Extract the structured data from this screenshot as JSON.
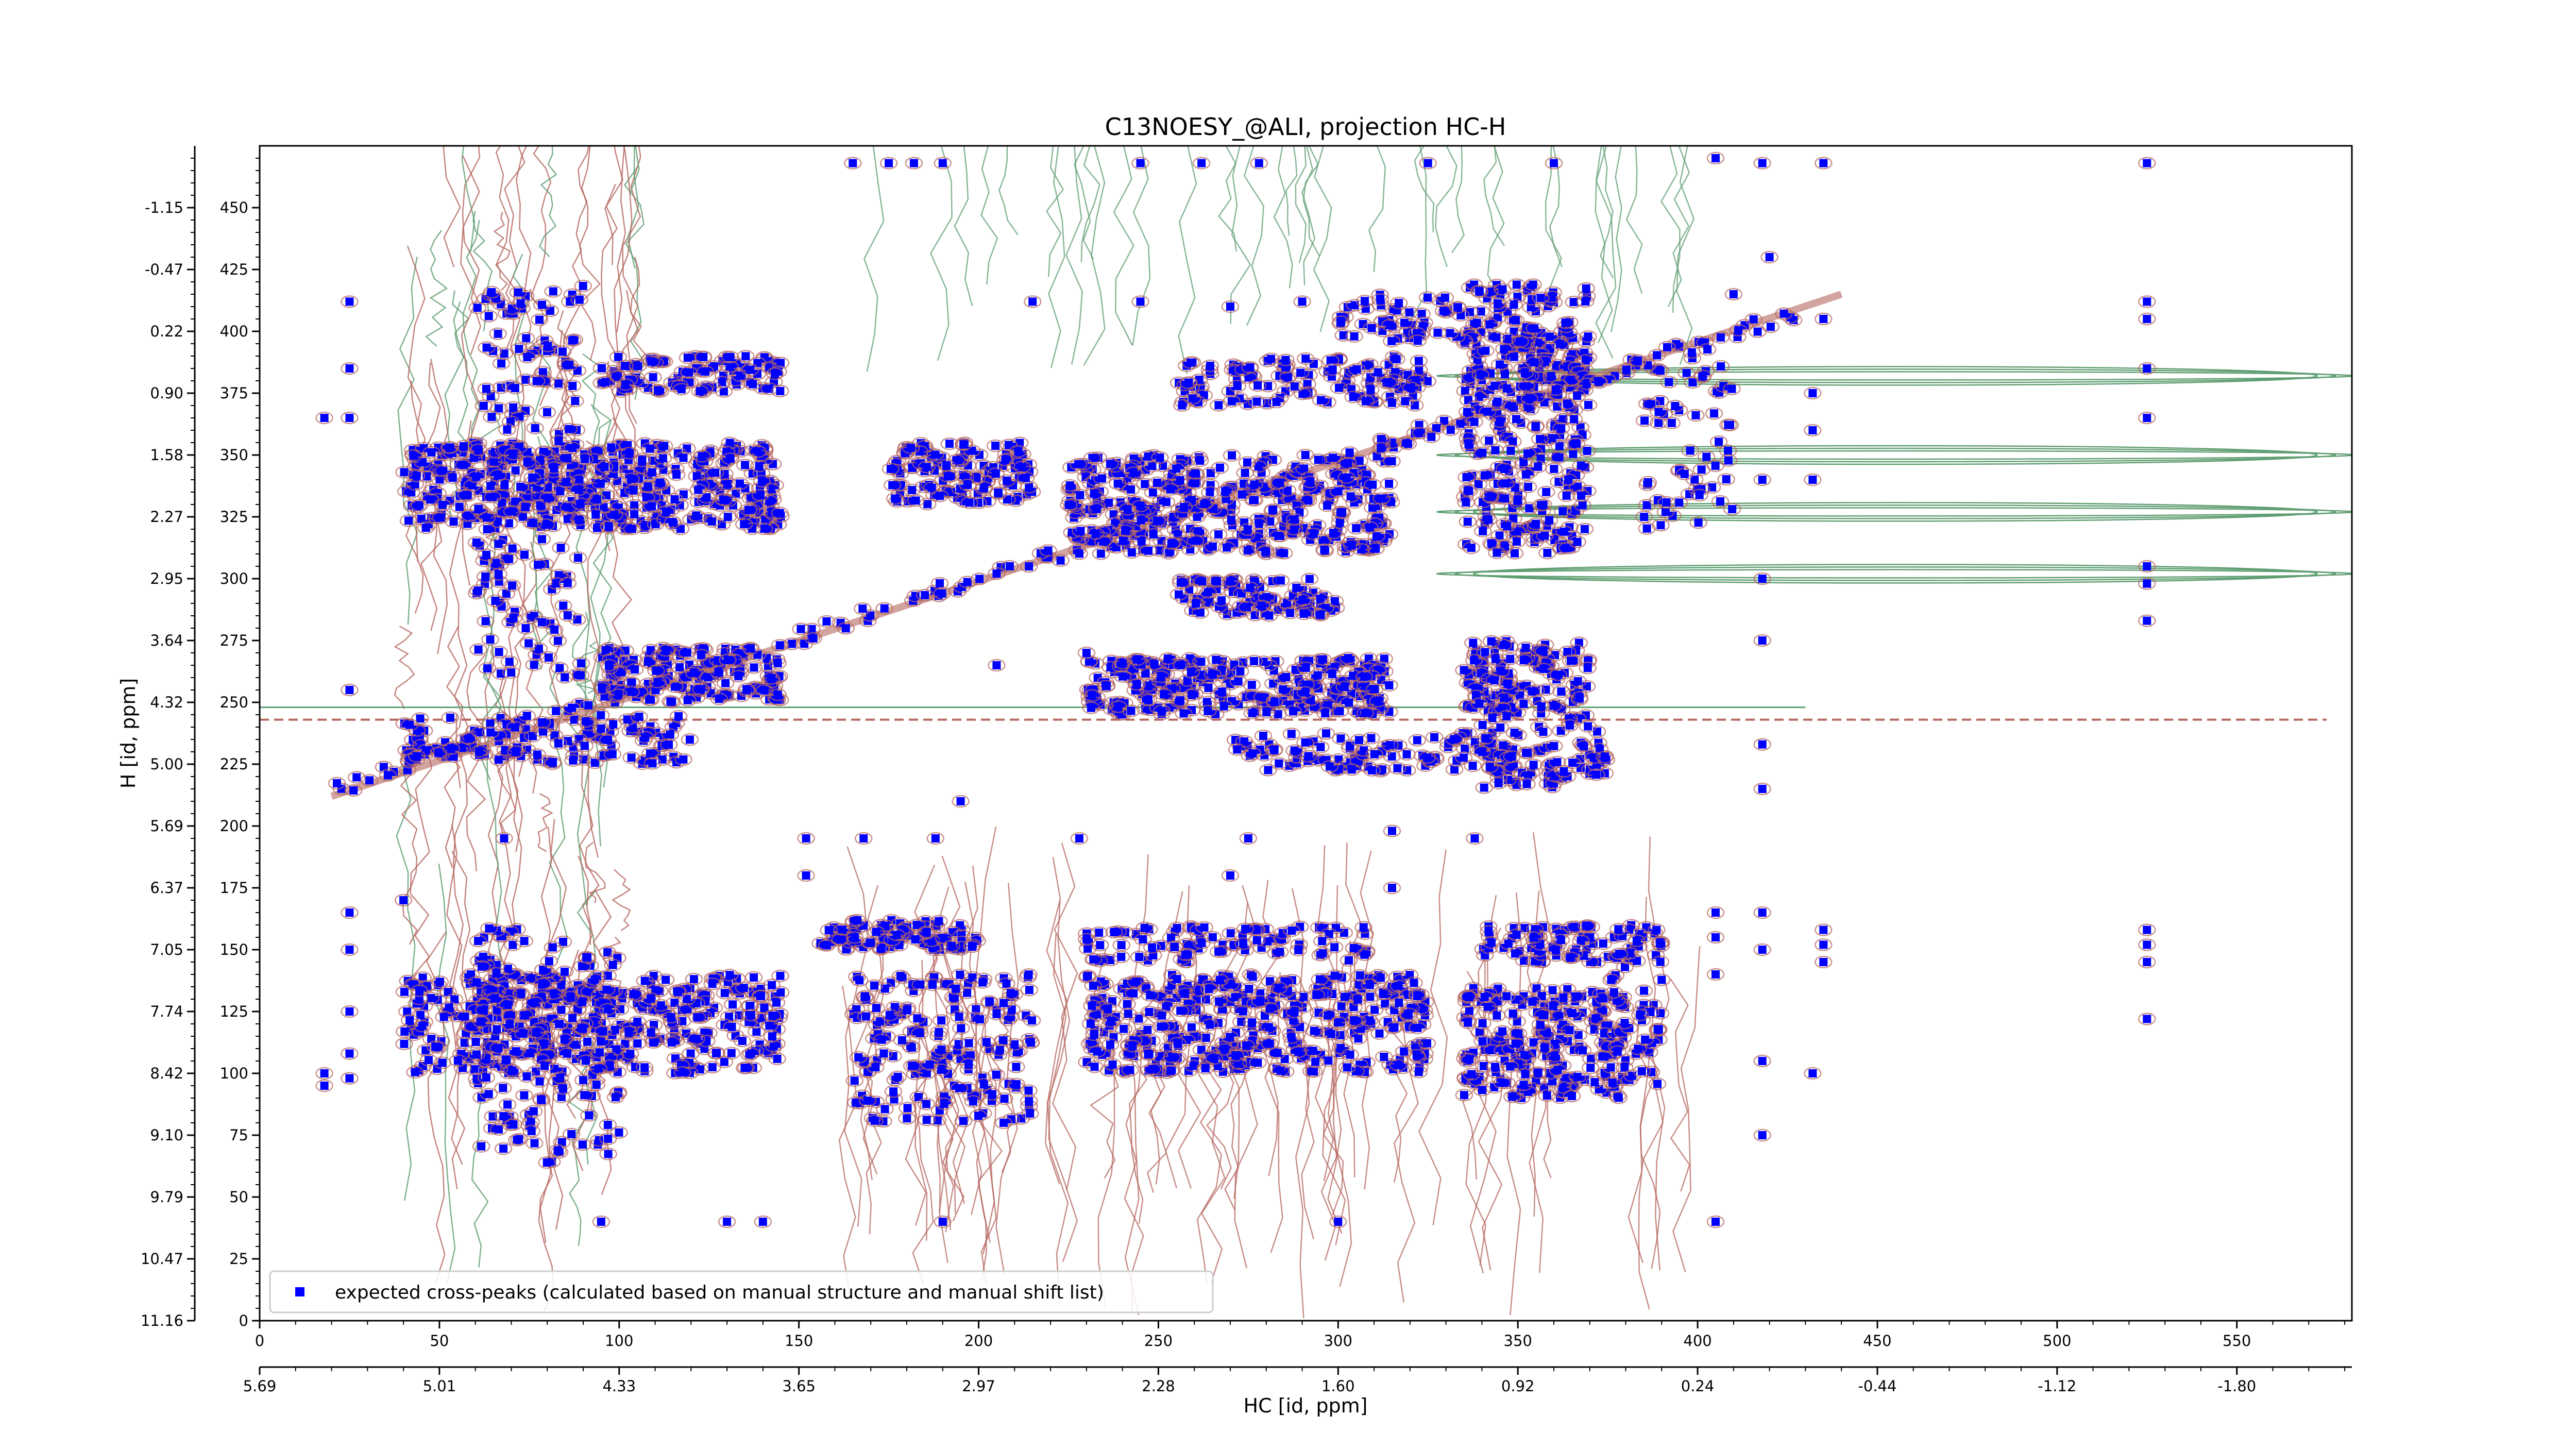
{
  "chart_data": {
    "type": "scatter",
    "title": "C13NOESY_@ALI, projection HC-H",
    "xlabel": "HC [id, ppm]",
    "ylabel": "H [id, ppm]",
    "xlim": [
      0,
      582
    ],
    "ylim": [
      0,
      475
    ],
    "x_ticks": [
      0,
      50,
      100,
      150,
      200,
      250,
      300,
      350,
      400,
      450,
      500,
      550
    ],
    "x_ppm_tick_positions": [
      0,
      50,
      100,
      150,
      200,
      250,
      300,
      350,
      400,
      450,
      500,
      550
    ],
    "x_ppm_tick_labels": [
      "5.69",
      "5.01",
      "4.33",
      "3.65",
      "2.97",
      "2.28",
      "1.60",
      "0.92",
      "0.24",
      "-0.44",
      "-1.12",
      "-1.80"
    ],
    "y_ticks": [
      0,
      25,
      50,
      75,
      100,
      125,
      150,
      175,
      200,
      225,
      250,
      275,
      300,
      325,
      350,
      375,
      400,
      425,
      450
    ],
    "y_ppm_tick_labels": [
      "11.16",
      "10.47",
      "9.79",
      "9.10",
      "8.42",
      "7.74",
      "7.05",
      "6.37",
      "5.69",
      "5.00",
      "4.32",
      "3.64",
      "2.95",
      "2.27",
      "1.58",
      "0.90",
      "0.22",
      "-0.47",
      "-1.15"
    ],
    "grid": false,
    "legend_position": "lower-left",
    "series": [
      {
        "name": "expected cross-peaks (calculated based on manual structure and manual shift list)",
        "color": "#0000ff",
        "marker": "x-square",
        "clusters": [
          {
            "x": [
              40,
              145
            ],
            "y": [
              320,
              355
            ],
            "n": 420
          },
          {
            "x": [
              95,
              145
            ],
            "y": [
              375,
              390
            ],
            "n": 90
          },
          {
            "x": [
              175,
              215
            ],
            "y": [
              330,
              355
            ],
            "n": 120
          },
          {
            "x": [
              225,
              315
            ],
            "y": [
              310,
              350
            ],
            "n": 380
          },
          {
            "x": [
              255,
              325
            ],
            "y": [
              370,
              390
            ],
            "n": 120
          },
          {
            "x": [
              335,
              370
            ],
            "y": [
              310,
              400
            ],
            "n": 260
          },
          {
            "x": [
              385,
              410
            ],
            "y": [
              320,
              390
            ],
            "n": 60
          },
          {
            "x": [
              95,
              145
            ],
            "y": [
              250,
              272
            ],
            "n": 160
          },
          {
            "x": [
              230,
              315
            ],
            "y": [
              245,
              268
            ],
            "n": 260
          },
          {
            "x": [
              255,
              300
            ],
            "y": [
              285,
              300
            ],
            "n": 90
          },
          {
            "x": [
              335,
              370
            ],
            "y": [
              245,
              275
            ],
            "n": 120
          },
          {
            "x": [
              40,
              120
            ],
            "y": [
              225,
              245
            ],
            "n": 130
          },
          {
            "x": [
              270,
              350
            ],
            "y": [
              222,
              238
            ],
            "n": 100
          },
          {
            "x": [
              340,
              375
            ],
            "y": [
              215,
              245
            ],
            "n": 80
          },
          {
            "x": [
              40,
              145
            ],
            "y": [
              100,
              140
            ],
            "n": 380
          },
          {
            "x": [
              165,
              215
            ],
            "y": [
              80,
              140
            ],
            "n": 180
          },
          {
            "x": [
              230,
              325
            ],
            "y": [
              100,
              140
            ],
            "n": 380
          },
          {
            "x": [
              335,
              380
            ],
            "y": [
              90,
              135
            ],
            "n": 210
          },
          {
            "x": [
              375,
              390
            ],
            "y": [
              95,
              145
            ],
            "n": 40
          },
          {
            "x": [
              60,
              100
            ],
            "y": [
              60,
              160
            ],
            "n": 180
          },
          {
            "x": [
              155,
              200
            ],
            "y": [
              150,
              162
            ],
            "n": 90
          },
          {
            "x": [
              230,
              310
            ],
            "y": [
              145,
              160
            ],
            "n": 90
          },
          {
            "x": [
              340,
              390
            ],
            "y": [
              145,
              160
            ],
            "n": 90
          },
          {
            "x": [
              60,
              90
            ],
            "y": [
              260,
              420
            ],
            "n": 180
          },
          {
            "x": [
              335,
              370
            ],
            "y": [
              380,
              420
            ],
            "n": 100
          },
          {
            "x": [
              300,
              335
            ],
            "y": [
              395,
              415
            ],
            "n": 50
          }
        ],
        "diagonal": {
          "x": [
            20,
            435
          ],
          "y": [
            215,
            412
          ],
          "n": 160
        },
        "outliers": [
          {
            "x": 525,
            "y": 468
          },
          {
            "x": 525,
            "y": 412
          },
          {
            "x": 525,
            "y": 405
          },
          {
            "x": 525,
            "y": 385
          },
          {
            "x": 525,
            "y": 365
          },
          {
            "x": 525,
            "y": 305
          },
          {
            "x": 525,
            "y": 298
          },
          {
            "x": 525,
            "y": 283
          },
          {
            "x": 525,
            "y": 158
          },
          {
            "x": 525,
            "y": 152
          },
          {
            "x": 525,
            "y": 145
          },
          {
            "x": 525,
            "y": 122
          },
          {
            "x": 435,
            "y": 158
          },
          {
            "x": 435,
            "y": 152
          },
          {
            "x": 435,
            "y": 145
          },
          {
            "x": 435,
            "y": 468
          },
          {
            "x": 435,
            "y": 405
          },
          {
            "x": 418,
            "y": 468
          },
          {
            "x": 418,
            "y": 340
          },
          {
            "x": 418,
            "y": 300
          },
          {
            "x": 418,
            "y": 275
          },
          {
            "x": 418,
            "y": 233
          },
          {
            "x": 418,
            "y": 215
          },
          {
            "x": 418,
            "y": 165
          },
          {
            "x": 418,
            "y": 150
          },
          {
            "x": 418,
            "y": 105
          },
          {
            "x": 418,
            "y": 75
          },
          {
            "x": 432,
            "y": 375
          },
          {
            "x": 432,
            "y": 360
          },
          {
            "x": 432,
            "y": 340
          },
          {
            "x": 432,
            "y": 100
          },
          {
            "x": 405,
            "y": 470
          },
          {
            "x": 405,
            "y": 165
          },
          {
            "x": 405,
            "y": 155
          },
          {
            "x": 405,
            "y": 140
          },
          {
            "x": 405,
            "y": 40
          },
          {
            "x": 25,
            "y": 412
          },
          {
            "x": 25,
            "y": 385
          },
          {
            "x": 25,
            "y": 365
          },
          {
            "x": 25,
            "y": 255
          },
          {
            "x": 25,
            "y": 165
          },
          {
            "x": 25,
            "y": 150
          },
          {
            "x": 25,
            "y": 125
          },
          {
            "x": 25,
            "y": 108
          },
          {
            "x": 25,
            "y": 98
          },
          {
            "x": 18,
            "y": 365
          },
          {
            "x": 18,
            "y": 100
          },
          {
            "x": 18,
            "y": 95
          },
          {
            "x": 165,
            "y": 468
          },
          {
            "x": 175,
            "y": 468
          },
          {
            "x": 182,
            "y": 468
          },
          {
            "x": 190,
            "y": 468
          },
          {
            "x": 245,
            "y": 468
          },
          {
            "x": 262,
            "y": 468
          },
          {
            "x": 278,
            "y": 468
          },
          {
            "x": 325,
            "y": 468
          },
          {
            "x": 360,
            "y": 468
          },
          {
            "x": 420,
            "y": 430
          },
          {
            "x": 410,
            "y": 415
          },
          {
            "x": 152,
            "y": 195
          },
          {
            "x": 152,
            "y": 180
          },
          {
            "x": 168,
            "y": 195
          },
          {
            "x": 188,
            "y": 195
          },
          {
            "x": 228,
            "y": 195
          },
          {
            "x": 275,
            "y": 195
          },
          {
            "x": 315,
            "y": 198
          },
          {
            "x": 338,
            "y": 195
          },
          {
            "x": 68,
            "y": 195
          },
          {
            "x": 40,
            "y": 170
          },
          {
            "x": 190,
            "y": 40
          },
          {
            "x": 300,
            "y": 40
          },
          {
            "x": 130,
            "y": 40
          },
          {
            "x": 140,
            "y": 40
          },
          {
            "x": 95,
            "y": 40
          },
          {
            "x": 195,
            "y": 210
          },
          {
            "x": 230,
            "y": 270
          },
          {
            "x": 205,
            "y": 265
          },
          {
            "x": 315,
            "y": 175
          },
          {
            "x": 270,
            "y": 180
          },
          {
            "x": 245,
            "y": 412
          },
          {
            "x": 215,
            "y": 412
          },
          {
            "x": 270,
            "y": 410
          },
          {
            "x": 290,
            "y": 412
          }
        ]
      }
    ],
    "contours": {
      "positive_color": "#b5675f",
      "negative_color": "#5f9e72",
      "description": "NOESY spectrum contour projection"
    }
  }
}
